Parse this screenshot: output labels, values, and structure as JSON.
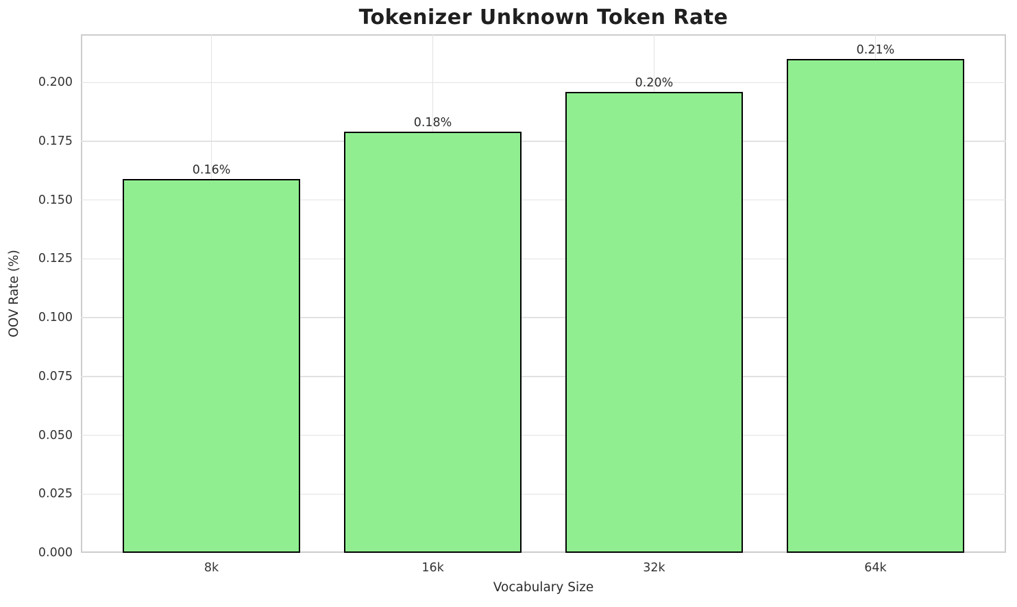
{
  "chart_data": {
    "type": "bar",
    "title": "Tokenizer Unknown Token Rate",
    "xlabel": "Vocabulary Size",
    "ylabel": "OOV Rate (%)",
    "categories": [
      "8k",
      "16k",
      "32k",
      "64k"
    ],
    "values": [
      0.159,
      0.179,
      0.196,
      0.21
    ],
    "bar_labels": [
      "0.16%",
      "0.18%",
      "0.20%",
      "0.21%"
    ],
    "ylim": [
      0,
      0.2205
    ],
    "yticks": [
      0,
      0.025,
      0.05,
      0.075,
      0.1,
      0.125,
      0.15,
      0.175,
      0.2
    ],
    "ytick_labels": [
      "0.000",
      "0.025",
      "0.050",
      "0.075",
      "0.100",
      "0.125",
      "0.150",
      "0.175",
      "0.200"
    ],
    "grid": true,
    "legend_position": "none",
    "colors": {
      "bar_fill": "#90EE90",
      "bar_edge": "#000000",
      "gridline": "#e2e2e2",
      "spine": "#cccccc",
      "tick_text": "#333333",
      "title_text": "#1f1f1f",
      "background": "#ffffff"
    }
  }
}
